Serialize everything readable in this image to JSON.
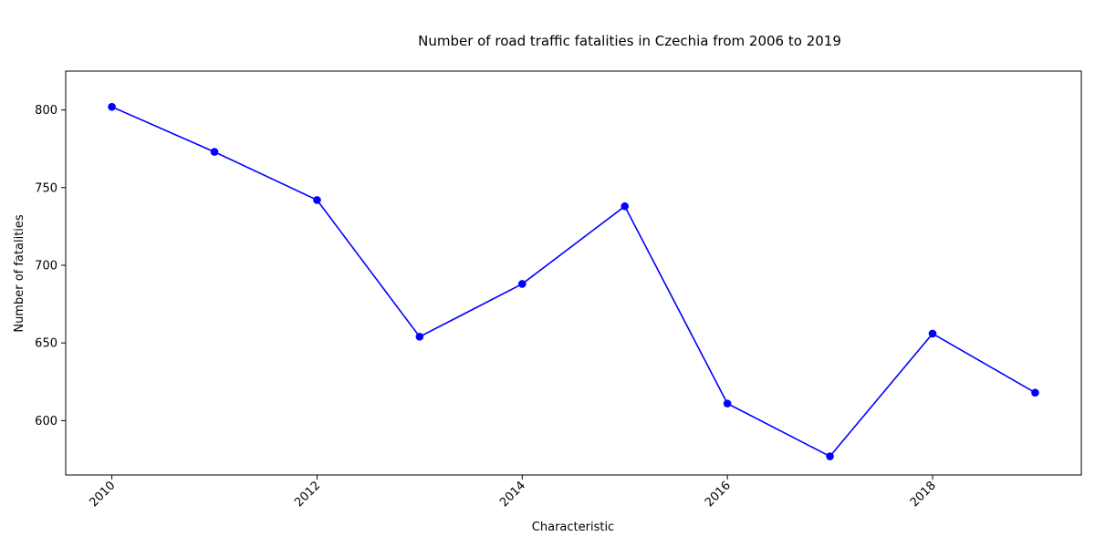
{
  "chart_data": {
    "type": "line",
    "title": "Number of road traffic fatalities in Czechia from 2006 to 2019",
    "xlabel": "Characteristic",
    "ylabel": "Number of fatalities",
    "x": [
      2010,
      2011,
      2012,
      2013,
      2014,
      2015,
      2016,
      2017,
      2018,
      2019
    ],
    "series": [
      {
        "values": [
          802,
          773,
          742,
          654,
          688,
          738,
          611,
          577,
          656,
          618
        ]
      }
    ],
    "xlim": [
      2009.55,
      2019.45
    ],
    "ylim": [
      565,
      825
    ],
    "x_ticks": [
      2010,
      2012,
      2014,
      2016,
      2018
    ],
    "x_tick_labels": [
      "2010",
      "2012",
      "2014",
      "2016",
      "2018"
    ],
    "y_ticks": [
      600,
      650,
      700,
      750,
      800
    ],
    "y_tick_labels": [
      "600",
      "650",
      "700",
      "750",
      "800"
    ],
    "grid": false,
    "line_color": "#0000ff",
    "marker_color": "#0000ff"
  }
}
